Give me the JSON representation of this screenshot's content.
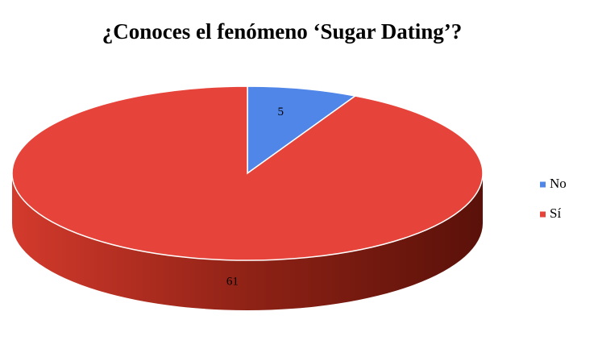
{
  "chart_data": {
    "type": "pie",
    "title": "¿Conoces el fenómeno ‘Sugar Dating’?",
    "categories": [
      "No",
      "Sí"
    ],
    "values": [
      5,
      61
    ],
    "colors": [
      "#4f86e8",
      "#e6443a"
    ],
    "legend": "right"
  }
}
